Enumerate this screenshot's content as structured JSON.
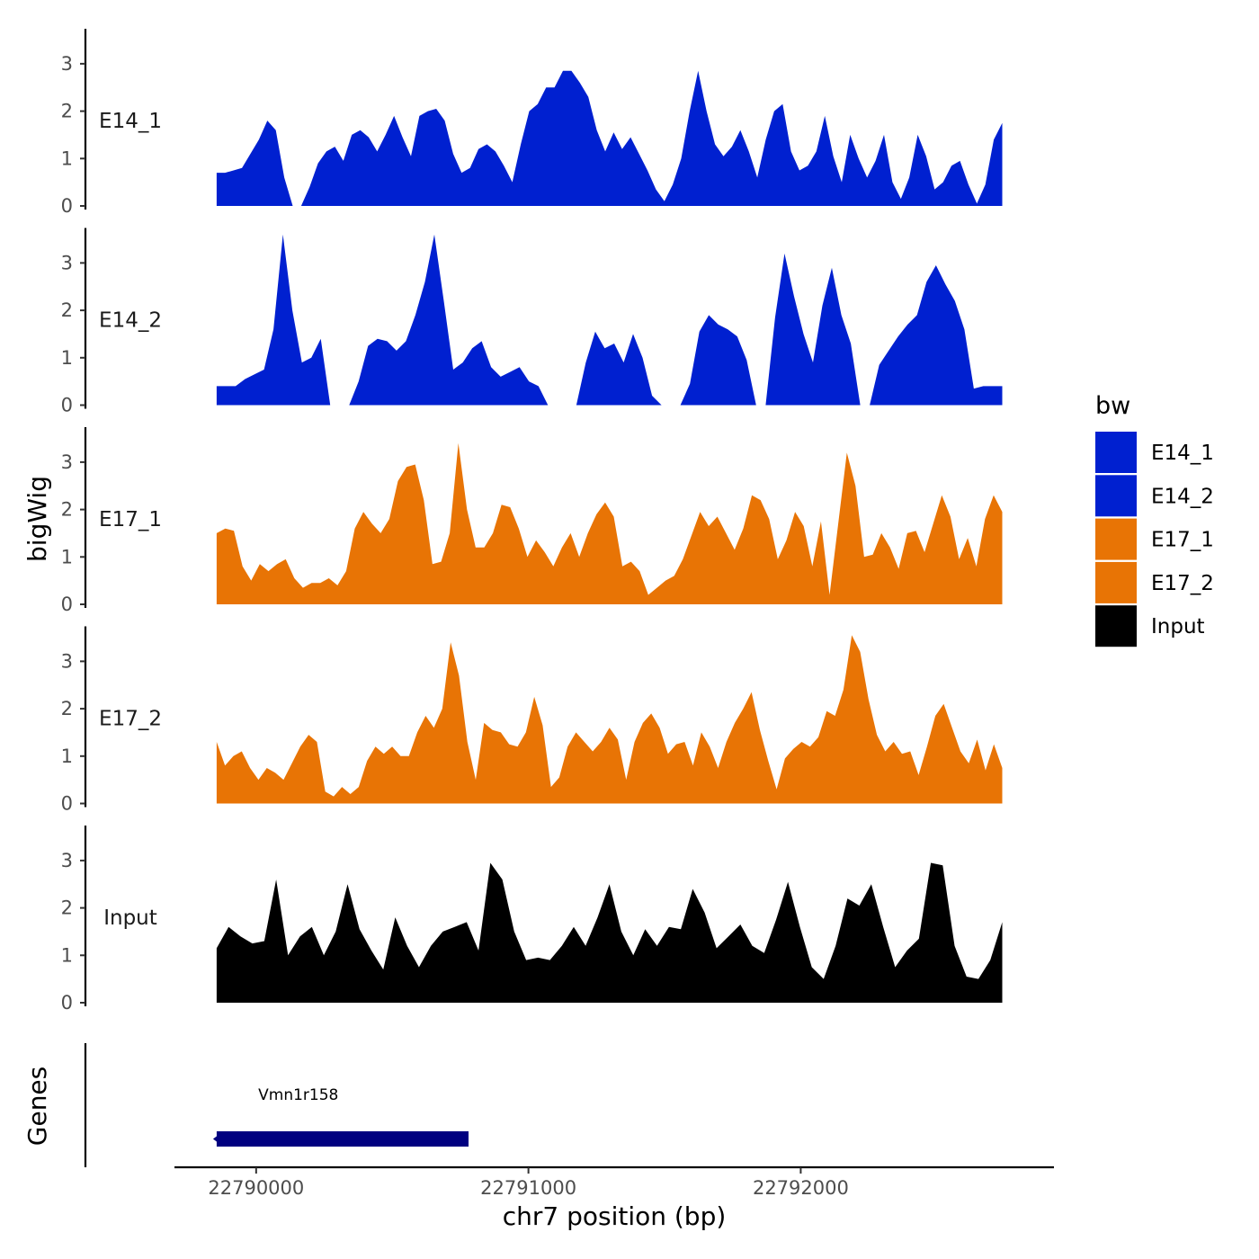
{
  "chart_data": {
    "type": "area",
    "title": "",
    "chromosome": "chr7",
    "xlabel": "chr7 position (bp)",
    "ylabel_tracks": "bigWig",
    "ylabel_genes": "Genes",
    "xlim": [
      22789700,
      22792930
    ],
    "ylim": [
      0,
      3.7
    ],
    "x_range": [
      22789855,
      22792740
    ],
    "x_ticks": [
      22790000,
      22791000,
      22792000
    ],
    "x_tick_labels": [
      "22790000",
      "22791000",
      "22792000"
    ],
    "y_ticks": [
      0,
      1,
      2,
      3
    ],
    "y_tick_labels": [
      "0",
      "1",
      "2",
      "3"
    ],
    "legend_title": "bw",
    "legend": [
      {
        "name": "E14_1",
        "color": "#0020D0"
      },
      {
        "name": "E14_2",
        "color": "#0020D0"
      },
      {
        "name": "E17_1",
        "color": "#E87405"
      },
      {
        "name": "E17_2",
        "color": "#E87405"
      },
      {
        "name": "Input",
        "color": "#000000"
      }
    ],
    "series": [
      {
        "name": "E14_1",
        "color": "#0020D0",
        "values": [
          0.7,
          0.7,
          0.75,
          0.8,
          1.1,
          1.4,
          1.8,
          1.6,
          0.6,
          0,
          0,
          0.4,
          0.9,
          1.15,
          1.25,
          0.95,
          1.5,
          1.6,
          1.45,
          1.15,
          1.5,
          1.9,
          1.45,
          1.05,
          1.9,
          2.0,
          2.05,
          1.8,
          1.1,
          0.7,
          0.8,
          1.2,
          1.3,
          1.15,
          0.85,
          0.5,
          1.3,
          2.0,
          2.15,
          2.5,
          2.5,
          2.85,
          2.85,
          2.6,
          2.3,
          1.6,
          1.15,
          1.55,
          1.2,
          1.45,
          1.1,
          0.75,
          0.35,
          0.1,
          0.45,
          1.0,
          2.0,
          2.85,
          2.0,
          1.3,
          1.05,
          1.25,
          1.6,
          1.15,
          0.6,
          1.4,
          2.0,
          2.15,
          1.15,
          0.75,
          0.85,
          1.15,
          1.9,
          1.05,
          0.5,
          1.5,
          1.0,
          0.6,
          0.95,
          1.5,
          0.5,
          0.15,
          0.6,
          1.5,
          1.05,
          0.35,
          0.5,
          0.85,
          0.95,
          0.45,
          0.05,
          0.45,
          1.4,
          1.75
        ]
      },
      {
        "name": "E14_2",
        "color": "#0020D0",
        "values": [
          0.4,
          0.4,
          0.4,
          0.55,
          0.65,
          0.75,
          1.6,
          3.6,
          2.0,
          0.9,
          1.0,
          1.4,
          0,
          0,
          0,
          0.5,
          1.25,
          1.4,
          1.35,
          1.15,
          1.35,
          1.9,
          2.6,
          3.6,
          2.2,
          0.75,
          0.9,
          1.2,
          1.35,
          0.8,
          0.6,
          0.7,
          0.8,
          0.5,
          0.4,
          0,
          0,
          0,
          0,
          0.9,
          1.55,
          1.2,
          1.3,
          0.9,
          1.5,
          1.0,
          0.2,
          0,
          0,
          0,
          0.45,
          1.55,
          1.9,
          1.7,
          1.6,
          1.45,
          0.95,
          0,
          0,
          1.85,
          3.2,
          2.3,
          1.5,
          0.9,
          2.1,
          2.9,
          1.9,
          1.3,
          0,
          0,
          0.85,
          1.15,
          1.45,
          1.7,
          1.9,
          2.6,
          2.95,
          2.55,
          2.2,
          1.6,
          0.35,
          0.4,
          0.4,
          0.4
        ]
      },
      {
        "name": "E17_1",
        "color": "#E87405",
        "values": [
          1.5,
          1.6,
          1.55,
          0.8,
          0.5,
          0.85,
          0.7,
          0.85,
          0.95,
          0.55,
          0.35,
          0.45,
          0.45,
          0.55,
          0.4,
          0.7,
          1.6,
          1.95,
          1.7,
          1.5,
          1.8,
          2.6,
          2.9,
          2.95,
          2.2,
          0.85,
          0.9,
          1.5,
          3.4,
          2.0,
          1.2,
          1.2,
          1.5,
          2.1,
          2.05,
          1.6,
          1.0,
          1.35,
          1.1,
          0.8,
          1.2,
          1.5,
          1.0,
          1.5,
          1.9,
          2.15,
          1.85,
          0.8,
          0.9,
          0.7,
          0.2,
          0.35,
          0.5,
          0.6,
          0.95,
          1.45,
          1.95,
          1.65,
          1.85,
          1.5,
          1.15,
          1.6,
          2.3,
          2.2,
          1.8,
          0.95,
          1.35,
          1.95,
          1.65,
          0.8,
          1.75,
          0.2,
          1.7,
          3.2,
          2.5,
          1.0,
          1.05,
          1.5,
          1.2,
          0.75,
          1.5,
          1.55,
          1.1,
          1.7,
          2.3,
          1.85,
          0.95,
          1.4,
          0.8,
          1.8,
          2.3,
          1.95
        ]
      },
      {
        "name": "E17_2",
        "color": "#E87405",
        "values": [
          1.3,
          0.8,
          1.0,
          1.1,
          0.75,
          0.5,
          0.75,
          0.65,
          0.5,
          0.85,
          1.2,
          1.45,
          1.3,
          0.25,
          0.15,
          0.35,
          0.2,
          0.35,
          0.9,
          1.2,
          1.05,
          1.2,
          1.0,
          1.0,
          1.5,
          1.85,
          1.6,
          2.0,
          3.4,
          2.7,
          1.3,
          0.5,
          1.7,
          1.55,
          1.5,
          1.25,
          1.2,
          1.5,
          2.25,
          1.65,
          0.35,
          0.55,
          1.2,
          1.5,
          1.3,
          1.1,
          1.3,
          1.6,
          1.35,
          0.5,
          1.3,
          1.7,
          1.9,
          1.6,
          1.05,
          1.25,
          1.3,
          0.8,
          1.5,
          1.2,
          0.75,
          1.3,
          1.7,
          2.0,
          2.35,
          1.55,
          0.9,
          0.3,
          0.95,
          1.15,
          1.3,
          1.2,
          1.4,
          1.95,
          1.85,
          2.4,
          3.55,
          3.2,
          2.2,
          1.45,
          1.1,
          1.3,
          1.05,
          1.1,
          0.6,
          1.2,
          1.85,
          2.1,
          1.6,
          1.1,
          0.85,
          1.35,
          0.7,
          1.25,
          0.75
        ]
      },
      {
        "name": "Input",
        "color": "#000000",
        "values": [
          1.15,
          1.6,
          1.4,
          1.25,
          1.3,
          2.6,
          1.0,
          1.4,
          1.6,
          1.0,
          1.5,
          2.5,
          1.55,
          1.1,
          0.7,
          1.8,
          1.2,
          0.75,
          1.2,
          1.5,
          1.6,
          1.7,
          1.1,
          2.95,
          2.6,
          1.5,
          0.9,
          0.95,
          0.9,
          1.2,
          1.6,
          1.2,
          1.8,
          2.5,
          1.5,
          1.0,
          1.55,
          1.2,
          1.6,
          1.55,
          2.4,
          1.9,
          1.15,
          1.4,
          1.65,
          1.2,
          1.05,
          1.75,
          2.55,
          1.6,
          0.75,
          0.5,
          1.2,
          2.2,
          2.05,
          2.5,
          1.6,
          0.75,
          1.1,
          1.35,
          2.95,
          2.9,
          1.2,
          0.55,
          0.5,
          0.9,
          1.7
        ]
      }
    ],
    "genes": [
      {
        "name": "Vmn1r158",
        "start": 22789855,
        "end": 22790780,
        "strand": "-",
        "color": "#000080"
      }
    ]
  }
}
